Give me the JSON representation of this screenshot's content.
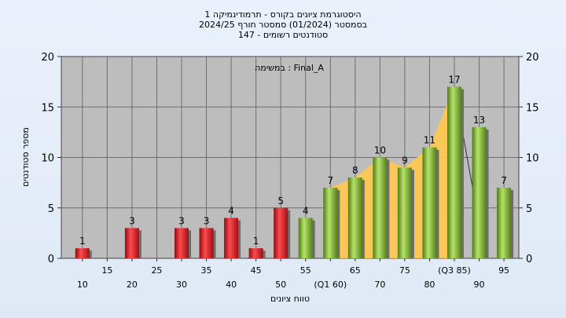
{
  "chart_data": {
    "type": "bar",
    "title_lines": [
      "היסטוגרמת ציונים בקורס - תרמודינמיקה 1",
      "בסמסטר  (01/2024)  סמסטר חורף 2024/25",
      "סטודנטים רשומים - 147"
    ],
    "annotation": "במשימה : Final_A",
    "xlabel": "טווח ציונים",
    "ylabel": "מספר סטודנטים",
    "ylim": [
      0,
      20
    ],
    "yticks": [
      0,
      5,
      10,
      15,
      20
    ],
    "x_bins": [
      10,
      15,
      20,
      25,
      30,
      35,
      40,
      45,
      50,
      55,
      60,
      65,
      70,
      75,
      80,
      85,
      90,
      95
    ],
    "x_tick_labels": [
      {
        "x": 10,
        "label": "10",
        "row": 2
      },
      {
        "x": 15,
        "label": "15",
        "row": 1
      },
      {
        "x": 20,
        "label": "20",
        "row": 2
      },
      {
        "x": 25,
        "label": "25",
        "row": 1
      },
      {
        "x": 30,
        "label": "30",
        "row": 2
      },
      {
        "x": 35,
        "label": "35",
        "row": 1
      },
      {
        "x": 40,
        "label": "40",
        "row": 2
      },
      {
        "x": 45,
        "label": "45",
        "row": 1
      },
      {
        "x": 50,
        "label": "50",
        "row": 2
      },
      {
        "x": 55,
        "label": "55",
        "row": 1
      },
      {
        "x": 60,
        "label": "(Q1 60)",
        "row": 2
      },
      {
        "x": 65,
        "label": "65",
        "row": 1
      },
      {
        "x": 70,
        "label": "70",
        "row": 2
      },
      {
        "x": 75,
        "label": "75",
        "row": 1
      },
      {
        "x": 80,
        "label": "80",
        "row": 2
      },
      {
        "x": 85,
        "label": "(Q3 85)",
        "row": 1
      },
      {
        "x": 90,
        "label": "90",
        "row": 2
      },
      {
        "x": 95,
        "label": "95",
        "row": 1
      }
    ],
    "bars": [
      {
        "x": 10,
        "value": 1,
        "group": "fail"
      },
      {
        "x": 20,
        "value": 3,
        "group": "fail"
      },
      {
        "x": 30,
        "value": 3,
        "group": "fail"
      },
      {
        "x": 35,
        "value": 3,
        "group": "fail"
      },
      {
        "x": 40,
        "value": 4,
        "group": "fail"
      },
      {
        "x": 45,
        "value": 1,
        "group": "fail"
      },
      {
        "x": 50,
        "value": 5,
        "group": "fail"
      },
      {
        "x": 55,
        "value": 4,
        "group": "pass"
      },
      {
        "x": 60,
        "value": 7,
        "group": "pass"
      },
      {
        "x": 65,
        "value": 8,
        "group": "pass"
      },
      {
        "x": 70,
        "value": 10,
        "group": "pass"
      },
      {
        "x": 75,
        "value": 9,
        "group": "pass"
      },
      {
        "x": 80,
        "value": 11,
        "group": "pass"
      },
      {
        "x": 85,
        "value": 17,
        "group": "pass"
      },
      {
        "x": 90,
        "value": 13,
        "group": "pass"
      },
      {
        "x": 95,
        "value": 7,
        "group": "pass"
      }
    ],
    "area_overlay": {
      "x": [
        60,
        65,
        70,
        75,
        80,
        85
      ],
      "y": [
        7,
        8,
        10,
        9,
        11,
        17
      ],
      "color": "#ffc94d"
    },
    "colors": {
      "fail": "#e8262a",
      "pass": "#8ab83a",
      "plot_bg": "#bdbdbd",
      "grid": "#6e6e6e"
    },
    "grid": true,
    "secondary_y_axis": true
  }
}
